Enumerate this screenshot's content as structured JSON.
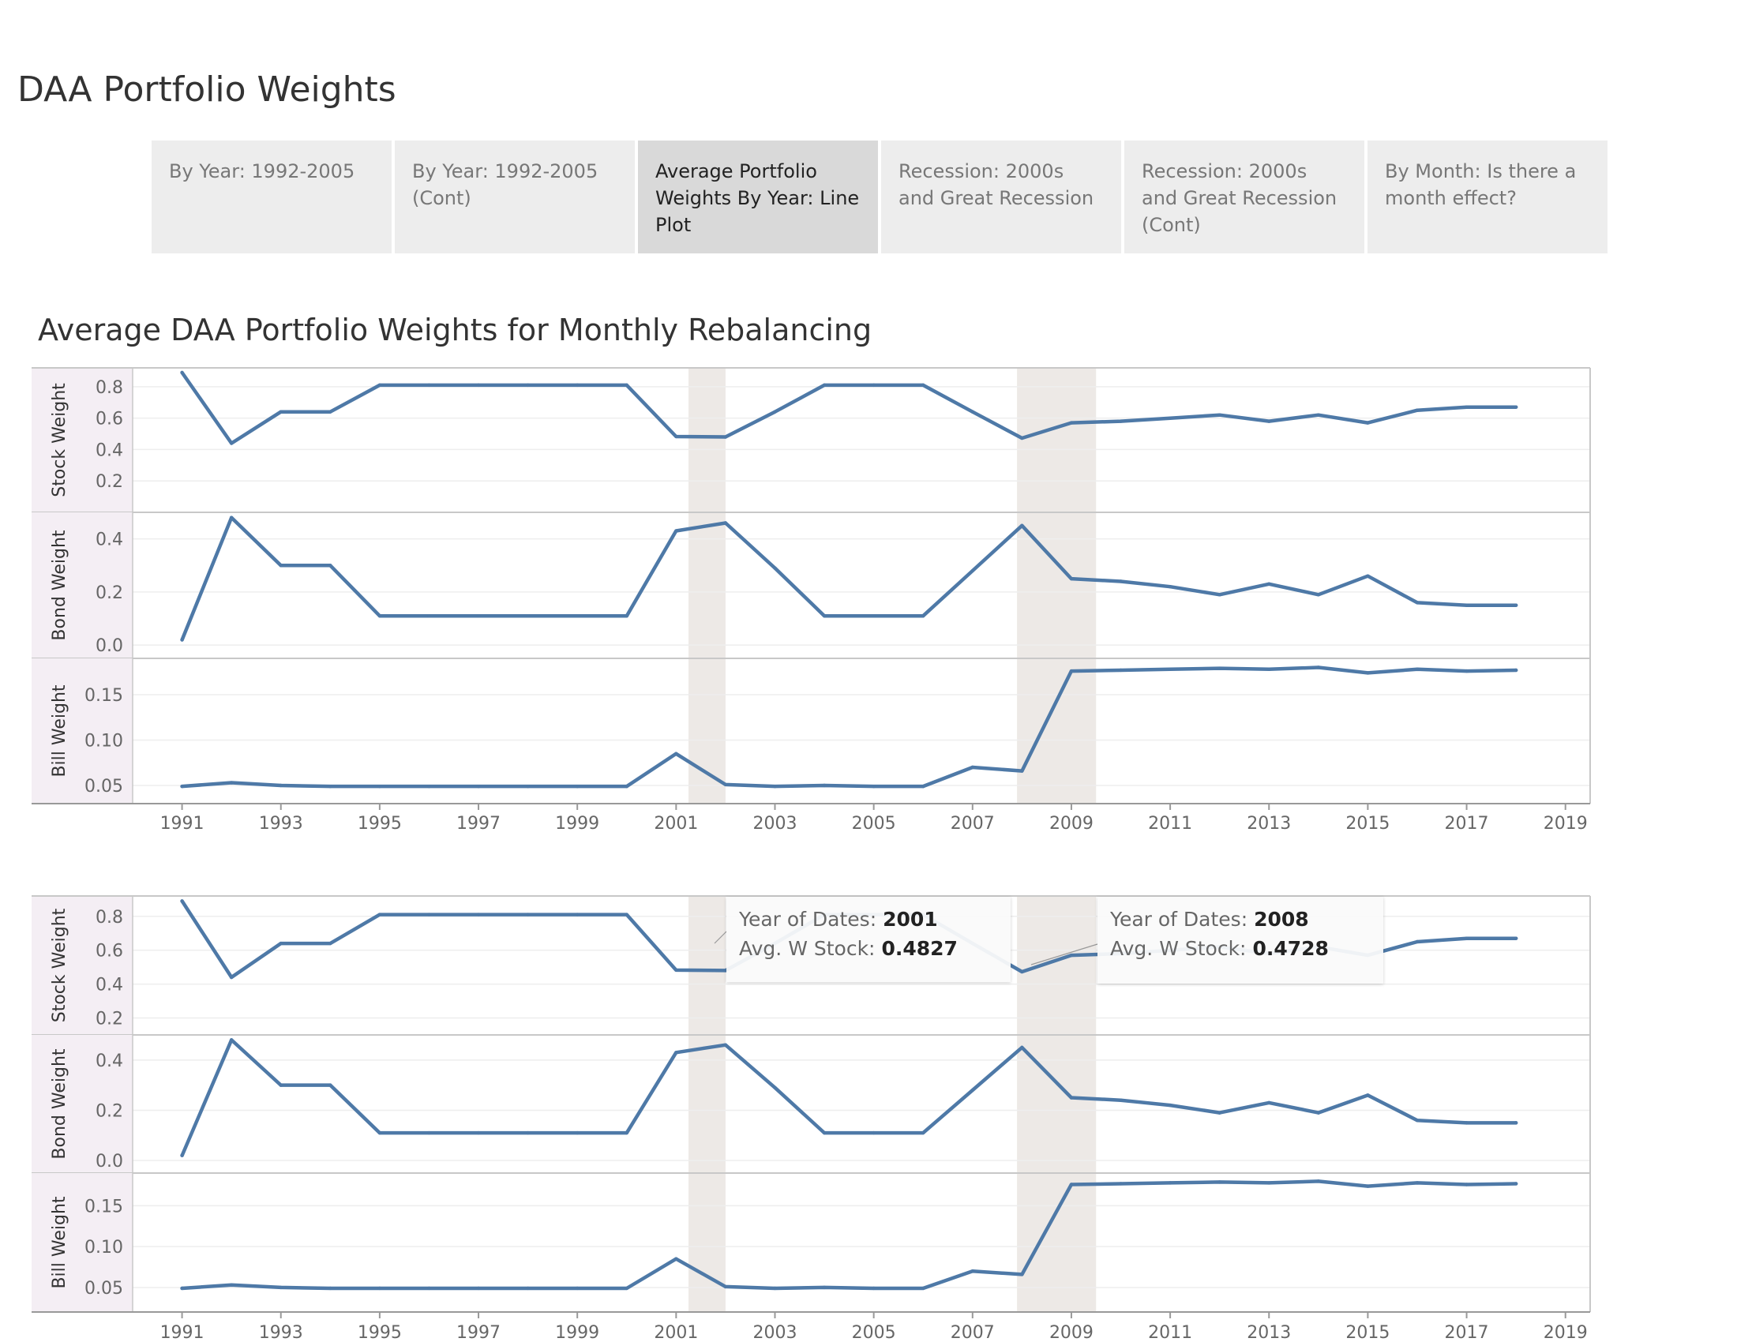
{
  "page_title": "DAA Portfolio Weights",
  "tabs": [
    {
      "label": "By Year: 1992-2005",
      "active": false
    },
    {
      "label": "By Year: 1992-2005 (Cont)",
      "active": false
    },
    {
      "label": "Average Portfolio Weights By Year: Line Plot",
      "active": true
    },
    {
      "label": "Recession: 2000s and Great Recession",
      "active": false
    },
    {
      "label": "Recession: 2000s and Great Recession (Cont)",
      "active": false
    },
    {
      "label": "By Month: Is there a month effect?",
      "active": false
    }
  ],
  "chart_title": "Average DAA Portfolio Weights for Monthly Rebalancing",
  "colors": {
    "line": "#4e79a7",
    "recession_band": "#ede9e6",
    "row_header": "#f4eef4",
    "grid": "#eeeeee",
    "border": "#c8c8c8"
  },
  "tooltips": [
    {
      "label1": "Year of Dates:",
      "value1": "2001",
      "label2": "Avg. W Stock:",
      "value2": "0.4827"
    },
    {
      "label1": "Year of Dates:",
      "value1": "2008",
      "label2": "Avg. W Stock:",
      "value2": "0.4728"
    }
  ],
  "chart_data": [
    {
      "type": "line",
      "x": [
        1991,
        1992,
        1993,
        1994,
        1995,
        1996,
        1997,
        1998,
        1999,
        2000,
        2001,
        2002,
        2003,
        2004,
        2005,
        2006,
        2007,
        2008,
        2009,
        2010,
        2011,
        2012,
        2013,
        2014,
        2015,
        2016,
        2017,
        2018
      ],
      "x_ticks": [
        "1991",
        "1993",
        "1995",
        "1997",
        "1999",
        "2001",
        "2003",
        "2005",
        "2007",
        "2009",
        "2011",
        "2013",
        "2015",
        "2017",
        "2019"
      ],
      "x_range": [
        1990,
        2019.5
      ],
      "shaded_ranges": [
        [
          2001.25,
          2002.0
        ],
        [
          2007.9,
          2009.5
        ]
      ],
      "panels": [
        {
          "ylabel": "Stock Weight",
          "ylim": [
            0.0,
            0.92
          ],
          "y_ticks": [
            "0.2",
            "0.4",
            "0.6",
            "0.8"
          ],
          "values": [
            0.89,
            0.44,
            0.64,
            0.64,
            0.81,
            0.81,
            0.81,
            0.81,
            0.81,
            0.81,
            0.4827,
            0.48,
            0.64,
            0.81,
            0.81,
            0.81,
            0.64,
            0.4728,
            0.57,
            0.58,
            0.6,
            0.62,
            0.58,
            0.62,
            0.57,
            0.65,
            0.67,
            0.67
          ]
        },
        {
          "ylabel": "Bond Weight",
          "ylim": [
            -0.05,
            0.5
          ],
          "y_ticks": [
            "0.0",
            "0.2",
            "0.4"
          ],
          "values": [
            0.02,
            0.48,
            0.3,
            0.3,
            0.11,
            0.11,
            0.11,
            0.11,
            0.11,
            0.11,
            0.43,
            0.46,
            0.29,
            0.11,
            0.11,
            0.11,
            0.28,
            0.45,
            0.25,
            0.24,
            0.22,
            0.19,
            0.23,
            0.19,
            0.26,
            0.16,
            0.15,
            0.15
          ]
        },
        {
          "ylabel": "Bill Weight",
          "ylim": [
            0.03,
            0.19
          ],
          "y_ticks": [
            "0.05",
            "0.10",
            "0.15"
          ],
          "values": [
            0.049,
            0.053,
            0.05,
            0.049,
            0.049,
            0.049,
            0.049,
            0.049,
            0.049,
            0.049,
            0.085,
            0.051,
            0.049,
            0.05,
            0.049,
            0.049,
            0.07,
            0.066,
            0.176,
            0.177,
            0.178,
            0.179,
            0.178,
            0.18,
            0.174,
            0.178,
            0.176,
            0.177
          ]
        }
      ]
    },
    {
      "type": "line",
      "x": [
        1991,
        1992,
        1993,
        1994,
        1995,
        1996,
        1997,
        1998,
        1999,
        2000,
        2001,
        2002,
        2003,
        2004,
        2005,
        2006,
        2007,
        2008,
        2009,
        2010,
        2011,
        2012,
        2013,
        2014,
        2015,
        2016,
        2017,
        2018
      ],
      "x_ticks": [
        "1991",
        "1993",
        "1995",
        "1997",
        "1999",
        "2001",
        "2003",
        "2005",
        "2007",
        "2009",
        "2011",
        "2013",
        "2015",
        "2017",
        "2019"
      ],
      "x_range": [
        1990,
        2019.5
      ],
      "shaded_ranges": [
        [
          2001.25,
          2002.0
        ],
        [
          2007.9,
          2009.5
        ]
      ],
      "panels": [
        {
          "ylabel": "Stock Weight",
          "ylim": [
            0.1,
            0.92
          ],
          "y_ticks": [
            "0.2",
            "0.4",
            "0.6",
            "0.8"
          ],
          "values": [
            0.89,
            0.44,
            0.64,
            0.64,
            0.81,
            0.81,
            0.81,
            0.81,
            0.81,
            0.81,
            0.4827,
            0.48,
            0.64,
            0.81,
            0.81,
            0.81,
            0.64,
            0.4728,
            0.57,
            0.58,
            0.6,
            0.62,
            0.58,
            0.62,
            0.57,
            0.65,
            0.67,
            0.67
          ]
        },
        {
          "ylabel": "Bond Weight",
          "ylim": [
            -0.05,
            0.5
          ],
          "y_ticks": [
            "0.0",
            "0.2",
            "0.4"
          ],
          "values": [
            0.02,
            0.48,
            0.3,
            0.3,
            0.11,
            0.11,
            0.11,
            0.11,
            0.11,
            0.11,
            0.43,
            0.46,
            0.29,
            0.11,
            0.11,
            0.11,
            0.28,
            0.45,
            0.25,
            0.24,
            0.22,
            0.19,
            0.23,
            0.19,
            0.26,
            0.16,
            0.15,
            0.15
          ]
        },
        {
          "ylabel": "Bill Weight",
          "ylim": [
            0.02,
            0.19
          ],
          "y_ticks": [
            "0.05",
            "0.10",
            "0.15"
          ],
          "values": [
            0.049,
            0.053,
            0.05,
            0.049,
            0.049,
            0.049,
            0.049,
            0.049,
            0.049,
            0.049,
            0.085,
            0.051,
            0.049,
            0.05,
            0.049,
            0.049,
            0.07,
            0.066,
            0.176,
            0.177,
            0.178,
            0.179,
            0.178,
            0.18,
            0.174,
            0.178,
            0.176,
            0.177
          ]
        }
      ]
    }
  ]
}
